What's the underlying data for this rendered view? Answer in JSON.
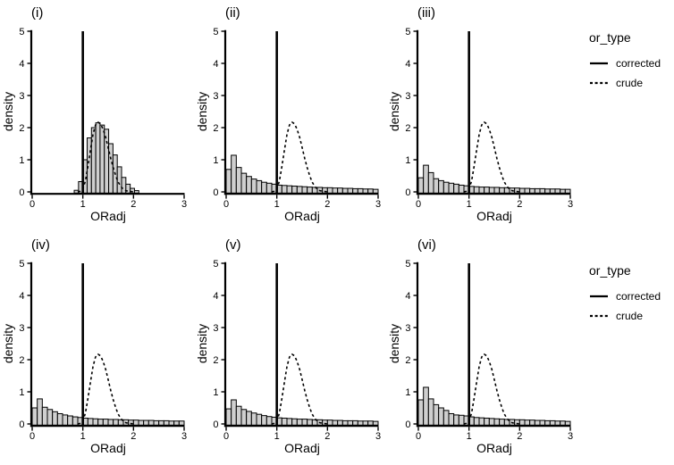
{
  "figure": {
    "background": "#ffffff",
    "line_color": "#000000",
    "bar_fill": "#cfcfcf",
    "bar_stroke": "#000000",
    "text_color": "#000000"
  },
  "legend": {
    "title": "or_type",
    "items": [
      {
        "label": "corrected",
        "style": "solid"
      },
      {
        "label": "crude",
        "style": "dashed"
      }
    ]
  },
  "chart_data": {
    "type": "bar",
    "subtype": "histogram-with-density-overlay",
    "xlabel": "ORadj",
    "ylabel": "density",
    "xlim": [
      0,
      3
    ],
    "ylim": [
      0,
      5
    ],
    "x_ticks": [
      0,
      1,
      2,
      3
    ],
    "x_tick_labels": [
      "0",
      "1",
      "2",
      "3"
    ],
    "y_ticks": [
      0,
      1,
      2,
      3,
      4,
      5
    ],
    "y_tick_labels": [
      "0",
      "1",
      "2",
      "3",
      "4",
      "5"
    ],
    "grid": false,
    "legend_position": "right",
    "corrected_vline_x": 1,
    "crude_curve": {
      "x": [
        0.9,
        0.95,
        1.0,
        1.05,
        1.1,
        1.15,
        1.2,
        1.25,
        1.3,
        1.35,
        1.4,
        1.45,
        1.5,
        1.55,
        1.6,
        1.65,
        1.7,
        1.75,
        1.8,
        1.85,
        1.9,
        1.95,
        2.0
      ],
      "y": [
        0.0,
        0.02,
        0.1,
        0.33,
        0.78,
        1.3,
        1.78,
        2.08,
        2.17,
        2.12,
        1.95,
        1.7,
        1.38,
        1.05,
        0.75,
        0.5,
        0.3,
        0.17,
        0.08,
        0.04,
        0.02,
        0.01,
        0.0
      ]
    },
    "panels": [
      {
        "title": "(i)",
        "bin_start": 0.83,
        "bin_width": 0.085,
        "bar_heights": [
          0.05,
          0.32,
          1.0,
          1.68,
          2.0,
          2.15,
          2.08,
          1.95,
          1.5,
          1.15,
          0.78,
          0.45,
          0.24,
          0.11,
          0.04
        ]
      },
      {
        "title": "(ii)",
        "bin_start": 0,
        "bin_width": 0.1,
        "bar_heights": [
          0.7,
          1.14,
          0.76,
          0.58,
          0.48,
          0.4,
          0.35,
          0.3,
          0.27,
          0.24,
          0.21,
          0.2,
          0.19,
          0.18,
          0.17,
          0.16,
          0.15,
          0.14,
          0.14,
          0.13,
          0.13,
          0.12,
          0.12,
          0.11,
          0.11,
          0.1,
          0.1,
          0.09,
          0.09,
          0.08
        ]
      },
      {
        "title": "(iii)",
        "bin_start": 0,
        "bin_width": 0.1,
        "bar_heights": [
          0.44,
          0.83,
          0.6,
          0.41,
          0.35,
          0.3,
          0.27,
          0.24,
          0.21,
          0.19,
          0.17,
          0.16,
          0.15,
          0.15,
          0.14,
          0.14,
          0.13,
          0.13,
          0.12,
          0.12,
          0.11,
          0.11,
          0.1,
          0.1,
          0.1,
          0.09,
          0.09,
          0.09,
          0.08,
          0.08
        ]
      },
      {
        "title": "(iv)",
        "bin_start": 0,
        "bin_width": 0.1,
        "bar_heights": [
          0.5,
          0.78,
          0.52,
          0.45,
          0.38,
          0.32,
          0.28,
          0.25,
          0.22,
          0.2,
          0.18,
          0.17,
          0.16,
          0.15,
          0.15,
          0.14,
          0.14,
          0.13,
          0.13,
          0.12,
          0.12,
          0.11,
          0.11,
          0.11,
          0.1,
          0.1,
          0.1,
          0.09,
          0.09,
          0.09
        ]
      },
      {
        "title": "(v)",
        "bin_start": 0,
        "bin_width": 0.1,
        "bar_heights": [
          0.47,
          0.75,
          0.55,
          0.45,
          0.39,
          0.34,
          0.3,
          0.26,
          0.23,
          0.21,
          0.19,
          0.18,
          0.17,
          0.16,
          0.15,
          0.15,
          0.14,
          0.13,
          0.13,
          0.12,
          0.12,
          0.11,
          0.11,
          0.1,
          0.1,
          0.1,
          0.09,
          0.09,
          0.09,
          0.08
        ]
      },
      {
        "title": "(vi)",
        "bin_start": 0,
        "bin_width": 0.1,
        "bar_heights": [
          0.75,
          1.14,
          0.78,
          0.6,
          0.5,
          0.42,
          0.32,
          0.28,
          0.27,
          0.25,
          0.22,
          0.2,
          0.19,
          0.18,
          0.17,
          0.16,
          0.15,
          0.14,
          0.14,
          0.13,
          0.13,
          0.12,
          0.12,
          0.11,
          0.11,
          0.1,
          0.1,
          0.09,
          0.09,
          0.08
        ]
      }
    ]
  }
}
